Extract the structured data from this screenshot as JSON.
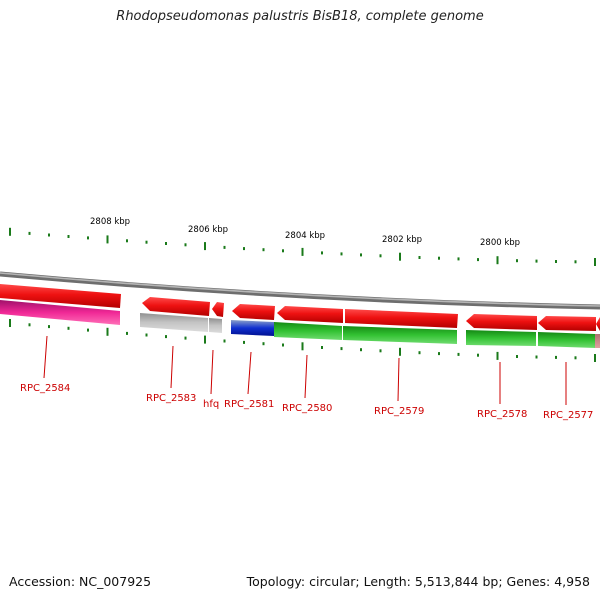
{
  "header": {
    "title": "Rhodopseudomonas palustris BisB18, complete genome"
  },
  "footer": {
    "accession": "Accession: NC_007925",
    "summary": "Topology: circular; Length: 5,513,844 bp; Genes: 4,958"
  },
  "ruler": {
    "labels": [
      "2808 kbp",
      "2806 kbp",
      "2804 kbp",
      "2802 kbp",
      "2800 kbp"
    ]
  },
  "genes": [
    {
      "name": "RPC_2584"
    },
    {
      "name": "RPC_2583"
    },
    {
      "name": "hfq"
    },
    {
      "name": "RPC_2581"
    },
    {
      "name": "RPC_2580"
    },
    {
      "name": "RPC_2579"
    },
    {
      "name": "RPC_2578"
    },
    {
      "name": "RPC_2577"
    }
  ],
  "colors": {
    "gene_red": "#ee1111",
    "backbone": "#8c8c8c",
    "tick": "#1a7a1a",
    "label": "#cc0000",
    "magenta": "#e0208a",
    "grey": "#bdbdbd",
    "blue": "#1030d0",
    "green": "#33c233"
  }
}
